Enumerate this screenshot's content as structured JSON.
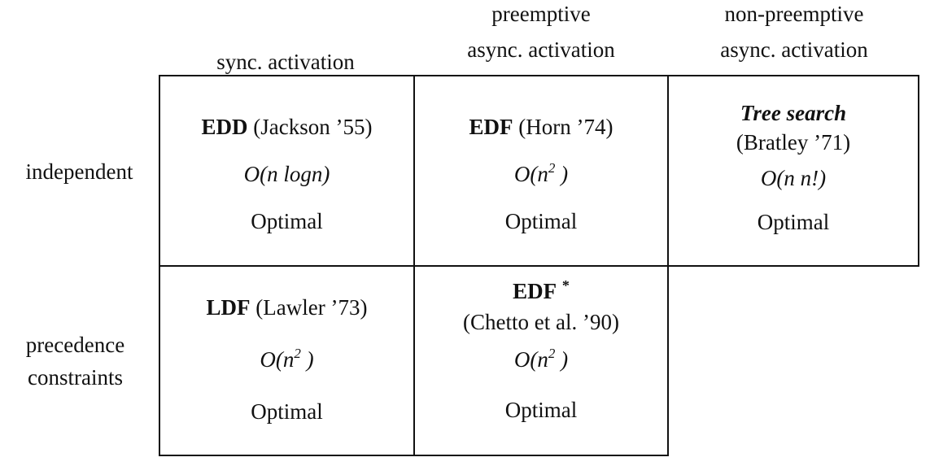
{
  "columns": [
    {
      "line1": "",
      "line2": "sync. activation"
    },
    {
      "line1": "preemptive",
      "line2": "async. activation"
    },
    {
      "line1": "non-preemptive",
      "line2": "async. activation"
    }
  ],
  "rows": [
    {
      "line1": "independent",
      "line2": ""
    },
    {
      "line1": "precedence",
      "line2": "constraints"
    }
  ],
  "cells": {
    "edd": {
      "algo": "EDD",
      "ref": "(Jackson ’55)",
      "complexity_prefix": "O(n logn)",
      "complexity_sup": "",
      "complexity_suffix": "",
      "result": "Optimal"
    },
    "edf": {
      "algo": "EDF",
      "ref": "(Horn ’74)",
      "complexity_prefix": "O(n",
      "complexity_sup": "2",
      "complexity_suffix": " )",
      "result": "Optimal"
    },
    "tree": {
      "algo": "Tree search",
      "ref": "(Bratley ’71)",
      "complexity_prefix": "O(n n!)",
      "complexity_sup": "",
      "complexity_suffix": "",
      "result": "Optimal"
    },
    "ldf": {
      "algo": "LDF",
      "ref": "(Lawler ’73)",
      "complexity_prefix": "O(n",
      "complexity_sup": "2",
      "complexity_suffix": " )",
      "result": "Optimal"
    },
    "edfstar": {
      "algo": "EDF",
      "star": "*",
      "ref": "(Chetto et al. ’90)",
      "complexity_prefix": "O(n",
      "complexity_sup": "2",
      "complexity_suffix": " )",
      "result": "Optimal"
    }
  }
}
